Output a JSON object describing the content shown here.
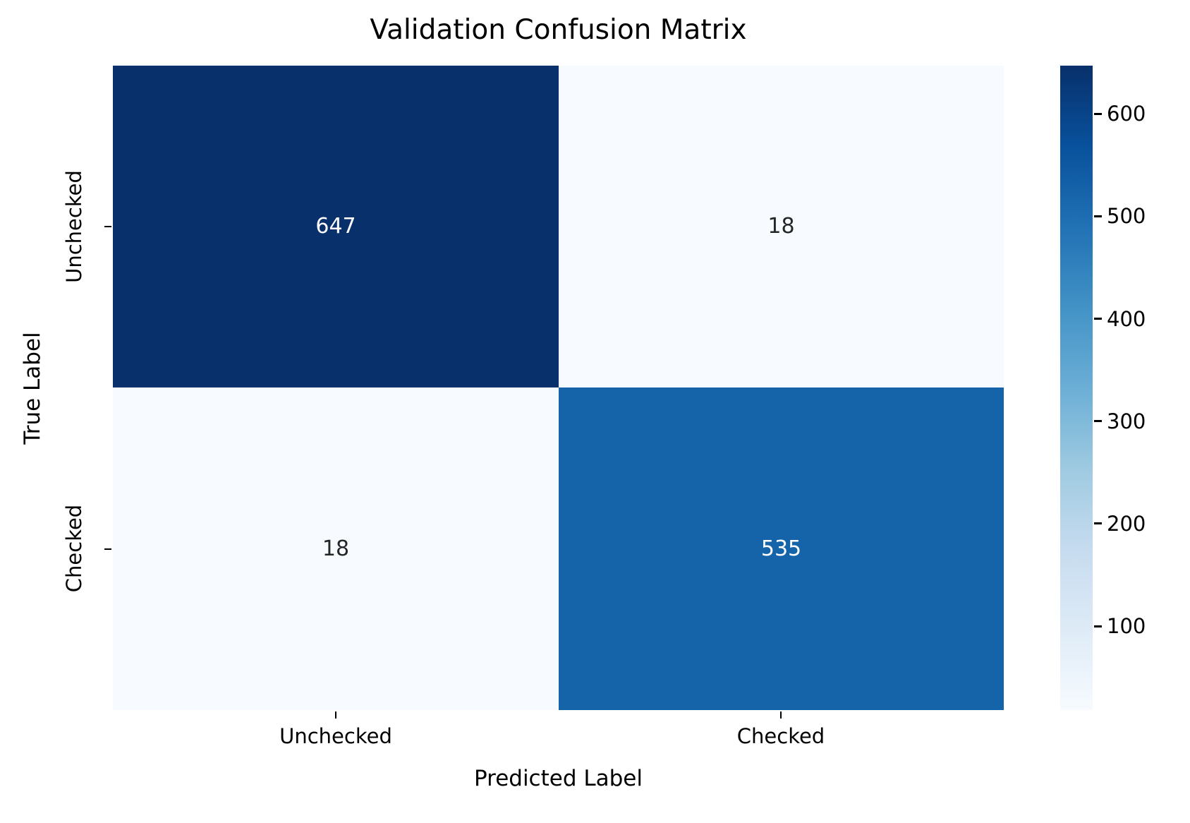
{
  "chart_data": {
    "type": "heatmap",
    "title": "Validation Confusion Matrix",
    "xlabel": "Predicted Label",
    "ylabel": "True Label",
    "x_categories": [
      "Unchecked",
      "Checked"
    ],
    "y_categories": [
      "Unchecked",
      "Checked"
    ],
    "values": [
      [
        647,
        18
      ],
      [
        18,
        535
      ]
    ],
    "vmin": 18,
    "vmax": 647,
    "colormap": "Blues",
    "colormap_min_hex": "#f7fbff",
    "colormap_max_hex": "#08306b",
    "cell_colors": [
      [
        "#08306b",
        "#f7fbff"
      ],
      [
        "#f7fbff",
        "#1563a9"
      ]
    ],
    "annotation_colors": [
      [
        "#ffffff",
        "#262626"
      ],
      [
        "#262626",
        "#ffffff"
      ]
    ],
    "colorbar_tick_labels": [
      "600",
      "500",
      "400",
      "300",
      "200",
      "100"
    ],
    "legend_position": "colorbar-right",
    "grid": false
  }
}
